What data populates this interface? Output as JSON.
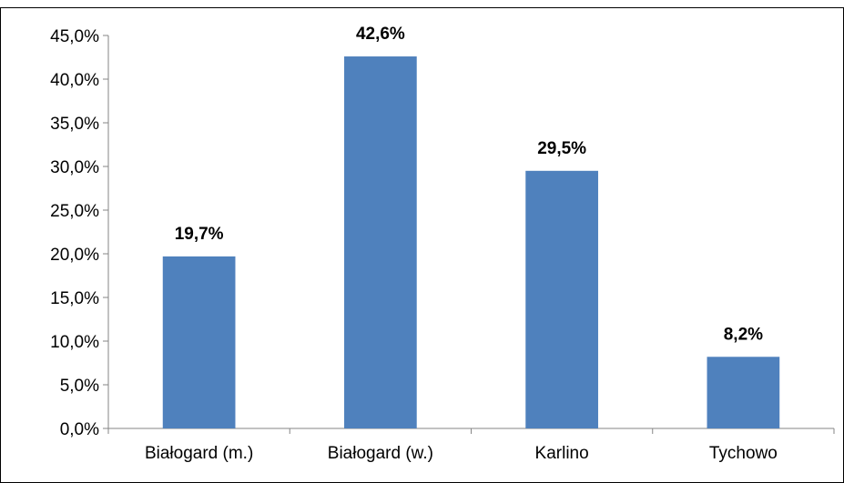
{
  "caption": "",
  "chart_data": {
    "type": "bar",
    "title": "",
    "xlabel": "",
    "ylabel": "",
    "categories": [
      "Białogard (m.)",
      "Białogard (w.)",
      "Karlino",
      "Tychowo"
    ],
    "values": [
      19.7,
      42.6,
      29.5,
      8.2
    ],
    "data_labels": [
      "19,7%",
      "42,6%",
      "29,5%",
      "8,2%"
    ],
    "ylim": [
      0,
      45
    ],
    "ytick_values": [
      0,
      5,
      10,
      15,
      20,
      25,
      30,
      35,
      40,
      45
    ],
    "ytick_labels": [
      "0,0%",
      "5,0%",
      "10,0%",
      "15,0%",
      "20,0%",
      "25,0%",
      "30,0%",
      "35,0%",
      "40,0%",
      "45,0%"
    ],
    "grid": false,
    "legend": "none",
    "bar_color": "#4F81BD"
  }
}
